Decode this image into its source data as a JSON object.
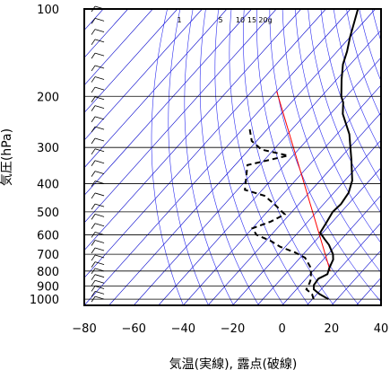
{
  "chart_data": {
    "type": "line",
    "title": "",
    "xlabel": "気温(実線), 露点(破線)",
    "ylabel": "気圧(hPa)",
    "x_ticks": [
      -80,
      -60,
      -40,
      -20,
      0,
      20,
      40
    ],
    "y_ticks": [
      100,
      200,
      300,
      400,
      500,
      600,
      700,
      800,
      900,
      1000
    ],
    "xlim": [
      -80,
      40
    ],
    "ylim": [
      1050,
      100
    ],
    "y_scale": "log",
    "mixing_ratio_labels": [
      "1",
      "5",
      "10",
      "15",
      "20g"
    ],
    "colors": {
      "temperature": "#000000",
      "dewpoint": "#000000",
      "isotherms": "#0000cc",
      "dry_adiabats": "#2a2af0",
      "reference_line": "#ff0000",
      "grid": "#000000"
    },
    "series": [
      {
        "type": "line",
        "style": "solid",
        "points": [
          {
            "t": 16.5,
            "p": 1000
          },
          {
            "t": 11,
            "p": 960
          },
          {
            "t": 7,
            "p": 925
          },
          {
            "t": 5.5,
            "p": 895
          },
          {
            "t": 5,
            "p": 850
          },
          {
            "t": 7,
            "p": 820
          },
          {
            "t": 5.5,
            "p": 780
          },
          {
            "t": 4,
            "p": 730
          },
          {
            "t": 2,
            "p": 700
          },
          {
            "t": -3,
            "p": 650
          },
          {
            "t": -7,
            "p": 620
          },
          {
            "t": -11,
            "p": 590
          },
          {
            "t": -12,
            "p": 550
          },
          {
            "t": -13.5,
            "p": 500
          },
          {
            "t": -13,
            "p": 470
          },
          {
            "t": -14,
            "p": 430
          },
          {
            "t": -17,
            "p": 390
          },
          {
            "t": -25,
            "p": 330
          },
          {
            "t": -35,
            "p": 270
          },
          {
            "t": -45,
            "p": 230
          },
          {
            "t": -49,
            "p": 210
          },
          {
            "t": -52,
            "p": 200
          },
          {
            "t": -58,
            "p": 175
          },
          {
            "t": -63,
            "p": 155
          },
          {
            "t": -66,
            "p": 140
          },
          {
            "t": -70,
            "p": 125
          },
          {
            "t": -74,
            "p": 110
          },
          {
            "t": -77,
            "p": 100
          }
        ]
      },
      {
        "type": "line",
        "style": "dashed",
        "points": [
          {
            "t": 10.5,
            "p": 1000
          },
          {
            "t": 8,
            "p": 960
          },
          {
            "t": 4,
            "p": 925
          },
          {
            "t": 3,
            "p": 880
          },
          {
            "t": 2,
            "p": 850
          },
          {
            "t": -2,
            "p": 780
          },
          {
            "t": -8,
            "p": 720
          },
          {
            "t": -14,
            "p": 690
          },
          {
            "t": -22,
            "p": 660
          },
          {
            "t": -28,
            "p": 630
          },
          {
            "t": -36,
            "p": 600
          },
          {
            "t": -40,
            "p": 570
          },
          {
            "t": -35,
            "p": 540
          },
          {
            "t": -32,
            "p": 510
          },
          {
            "t": -40,
            "p": 470
          },
          {
            "t": -47,
            "p": 440
          },
          {
            "t": -57,
            "p": 420
          },
          {
            "t": -60,
            "p": 390
          },
          {
            "t": -65,
            "p": 345
          },
          {
            "t": -52,
            "p": 320
          },
          {
            "t": -65,
            "p": 305
          },
          {
            "t": -72,
            "p": 285
          },
          {
            "t": -77,
            "p": 260
          }
        ]
      }
    ],
    "reference_line": {
      "t_start": -80,
      "p_start": 192,
      "t_end": 7,
      "p_end": 800
    },
    "wind_barbs": {
      "x_temp": -72,
      "levels": [
        100,
        110,
        120,
        130,
        145,
        160,
        175,
        190,
        205,
        220,
        240,
        260,
        285,
        310,
        340,
        370,
        400,
        440,
        480,
        520,
        560,
        600,
        640,
        680,
        720,
        760,
        800,
        840,
        880,
        920,
        960,
        1000
      ]
    }
  }
}
